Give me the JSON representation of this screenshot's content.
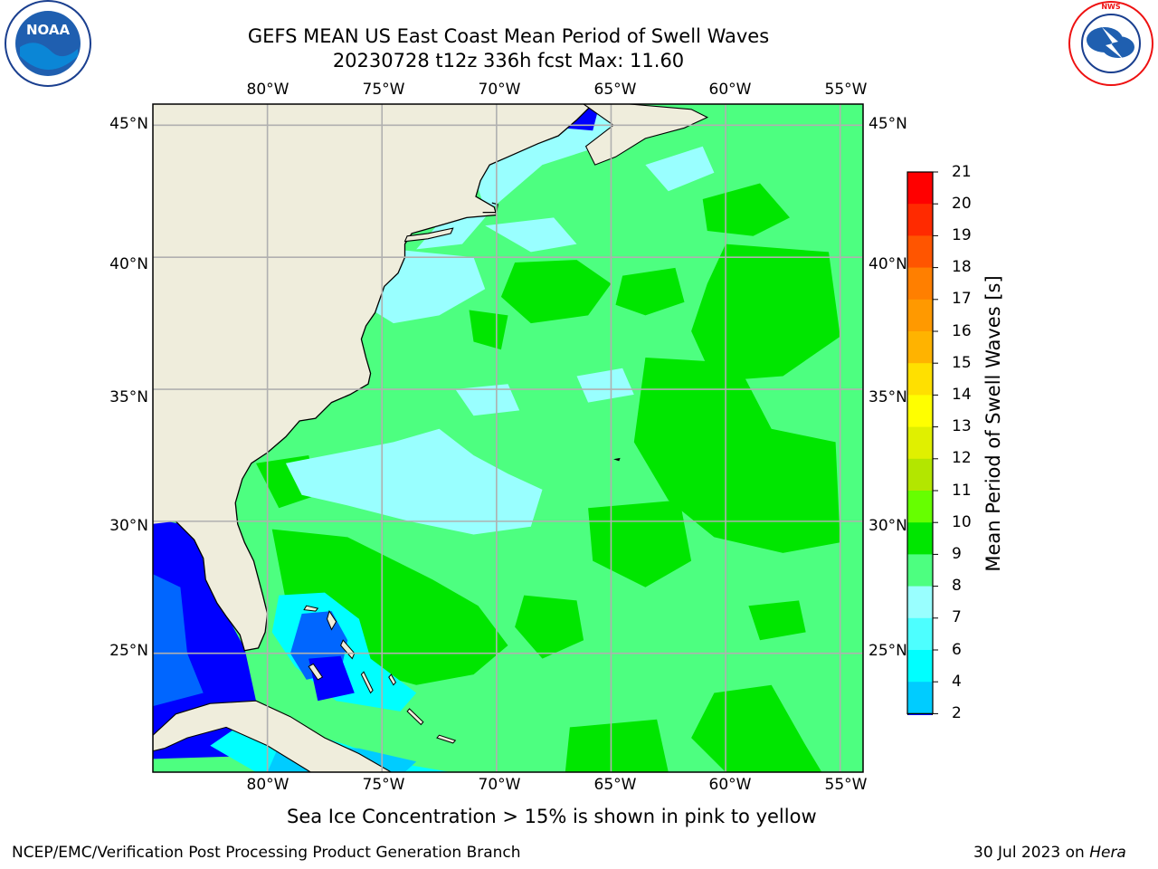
{
  "title": {
    "line1": "GEFS MEAN US East Coast Mean Period of Swell Waves",
    "line2": "20230728 t12z 336h fcst   Max: 11.60"
  },
  "logos": {
    "left": {
      "icon": "noaa-logo",
      "text": "NOAA"
    },
    "right": {
      "icon": "national-weather-service-logo",
      "text": "NATIONAL WEATHER SERVICE"
    }
  },
  "map": {
    "projection": "equirectangular",
    "lon_range": [
      -85,
      -54
    ],
    "lat_range": [
      20.5,
      45.8
    ],
    "lon_labels": [
      "80°W",
      "75°W",
      "70°W",
      "65°W",
      "60°W",
      "55°W"
    ],
    "lat_labels": [
      "45°N",
      "40°N",
      "35°N",
      "30°N",
      "25°N"
    ],
    "colors": {
      "land": "#efeddc",
      "ocean_9_10": "#4dff80",
      "ocean_10_11": "#00e600",
      "ocean_8_9": "#99ffff",
      "ocean_7_8": "#4dffff",
      "ocean_6_7": "#00ffff",
      "ocean_4_6": "#00ccff",
      "ocean_2_4": "#0066ff",
      "ocean_lt_2": "#0000ff",
      "grid": "#b0b0b0"
    }
  },
  "colorbar": {
    "label": "Mean Period of Swell Waves [s]",
    "ticks": [
      "21",
      "20",
      "19",
      "18",
      "17",
      "16",
      "15",
      "14",
      "13",
      "12",
      "11",
      "10",
      "9",
      "8",
      "7",
      "6",
      "4",
      "2"
    ],
    "colors": [
      "#ff0000",
      "#ff2a00",
      "#ff5500",
      "#ff7f00",
      "#ff9900",
      "#ffb300",
      "#ffe000",
      "#ffff00",
      "#e0f000",
      "#b3e600",
      "#66ff00",
      "#00e600",
      "#4dff80",
      "#99ffff",
      "#4dffff",
      "#00ffff",
      "#00ccff",
      "#0066ff"
    ],
    "under_color": "#0000ff"
  },
  "footer": {
    "note": "Sea Ice Concentration > 15% is shown in pink to yellow",
    "credit_left": "NCEP/EMC/Verification Post Processing Product Generation Branch",
    "credit_right_prefix": "30 Jul 2023 on ",
    "credit_right_machine": "Hera"
  }
}
